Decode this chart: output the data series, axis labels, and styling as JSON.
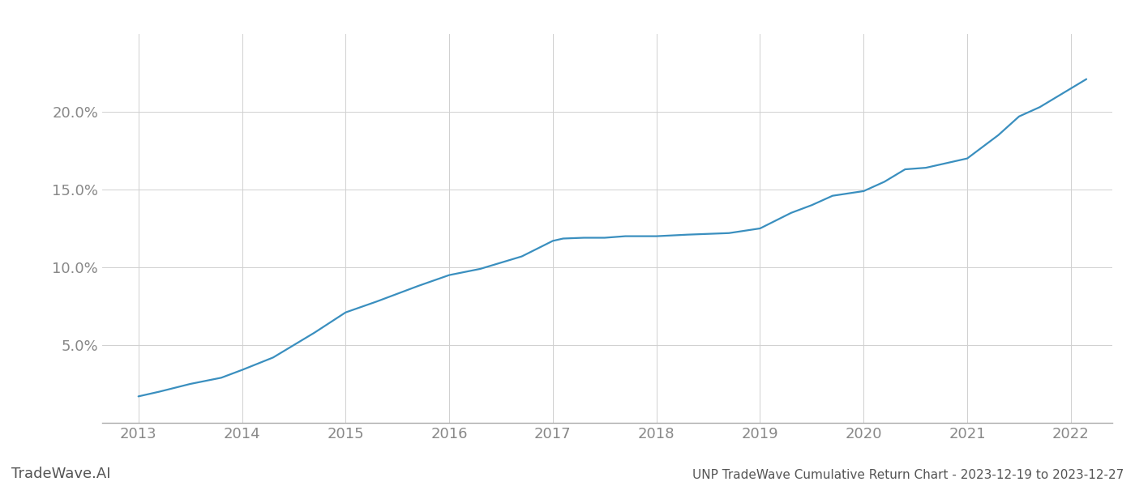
{
  "title": "UNP TradeWave Cumulative Return Chart - 2023-12-19 to 2023-12-27",
  "watermark": "TradeWave.AI",
  "line_color": "#3a8fbf",
  "background_color": "#ffffff",
  "grid_color": "#d0d0d0",
  "x_values": [
    2013.0,
    2013.2,
    2013.5,
    2013.8,
    2014.0,
    2014.3,
    2014.7,
    2015.0,
    2015.3,
    2015.7,
    2016.0,
    2016.3,
    2016.5,
    2016.7,
    2017.0,
    2017.1,
    2017.3,
    2017.5,
    2017.7,
    2018.0,
    2018.3,
    2018.5,
    2018.7,
    2019.0,
    2019.3,
    2019.5,
    2019.7,
    2020.0,
    2020.2,
    2020.4,
    2020.6,
    2021.0,
    2021.3,
    2021.5,
    2021.7,
    2022.0,
    2022.15
  ],
  "y_values": [
    1.7,
    2.0,
    2.5,
    2.9,
    3.4,
    4.2,
    5.8,
    7.1,
    7.8,
    8.8,
    9.5,
    9.9,
    10.3,
    10.7,
    11.7,
    11.85,
    11.9,
    11.9,
    12.0,
    12.0,
    12.1,
    12.15,
    12.2,
    12.5,
    13.5,
    14.0,
    14.6,
    14.9,
    15.5,
    16.3,
    16.4,
    17.0,
    18.5,
    19.7,
    20.3,
    21.5,
    22.1
  ],
  "xlim": [
    2012.65,
    2022.4
  ],
  "ylim": [
    0,
    25
  ],
  "yticks": [
    5.0,
    10.0,
    15.0,
    20.0
  ],
  "ytick_labels": [
    "5.0%",
    "10.0%",
    "15.0%",
    "20.0%"
  ],
  "xticks": [
    2013,
    2014,
    2015,
    2016,
    2017,
    2018,
    2019,
    2020,
    2021,
    2022
  ],
  "line_width": 1.6,
  "title_fontsize": 11,
  "tick_fontsize": 13,
  "watermark_fontsize": 13
}
